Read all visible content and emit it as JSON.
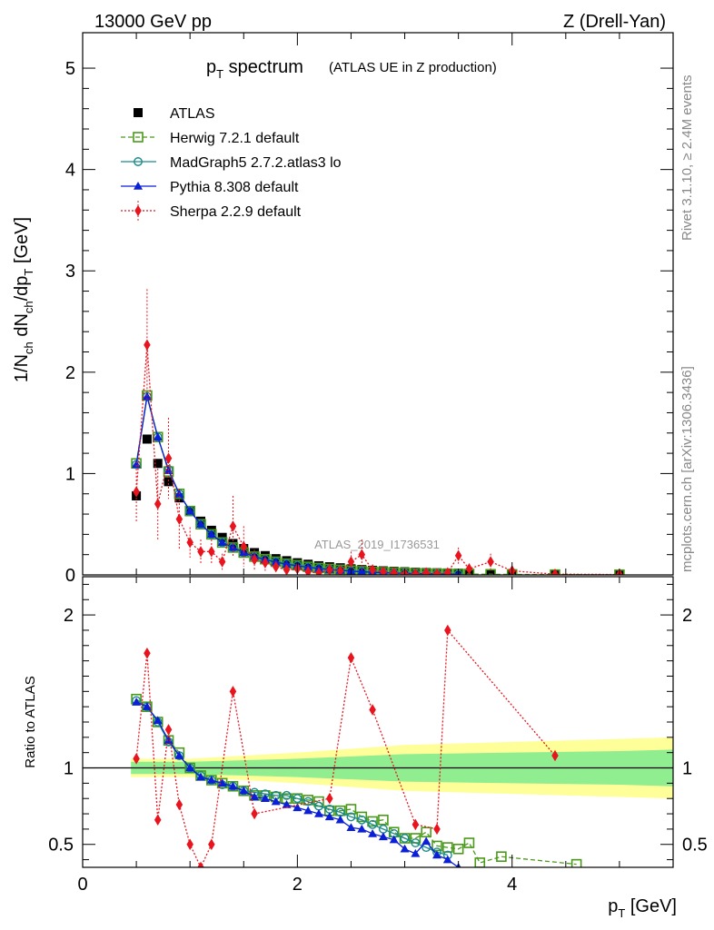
{
  "header": {
    "left": "13000 GeV pp",
    "right": "Z (Drell-Yan)"
  },
  "side_text": {
    "rivet": "Rivet 3.1.10, ≥ 2.4M events",
    "site": "mcplots.cern.ch [arXiv:1306.3436]"
  },
  "chart_data": [
    {
      "type": "line",
      "panel": "main",
      "title_main": "p",
      "title_sub": "T",
      "title_rest": " spectrum",
      "title_note": "(ATLAS UE in Z production)",
      "watermark": "ATLAS_2019_I1736531",
      "ylabel": "1/N_ch dN_ch/dp_T [GeV]",
      "xlim": [
        0,
        5.5
      ],
      "ylim": [
        0,
        5.35
      ],
      "yticks": [
        0,
        1,
        2,
        3,
        4,
        5
      ],
      "ytick_labels": [
        "0",
        "1",
        "2",
        "3",
        "4",
        "5"
      ],
      "legend_position": "top-left",
      "series": [
        {
          "name": "ATLAS",
          "color": "#000000",
          "marker": "square-filled",
          "line": "none",
          "x": [
            0.5,
            0.6,
            0.7,
            0.8,
            0.9,
            1.0,
            1.1,
            1.2,
            1.3,
            1.4,
            1.5,
            1.6,
            1.7,
            1.8,
            1.9,
            2.0,
            2.1,
            2.2,
            2.3,
            2.4,
            2.5,
            2.6,
            2.7,
            2.8,
            2.9,
            3.0,
            3.1,
            3.2,
            3.3,
            3.4,
            3.5,
            3.6,
            3.8,
            4.0,
            4.4,
            5.0
          ],
          "y": [
            0.78,
            1.34,
            1.1,
            0.92,
            0.76,
            0.63,
            0.53,
            0.44,
            0.37,
            0.31,
            0.26,
            0.22,
            0.19,
            0.16,
            0.14,
            0.12,
            0.105,
            0.09,
            0.08,
            0.07,
            0.06,
            0.052,
            0.045,
            0.04,
            0.035,
            0.031,
            0.027,
            0.024,
            0.021,
            0.019,
            0.017,
            0.015,
            0.012,
            0.01,
            0.007,
            0.004
          ]
        },
        {
          "name": "Herwig 7.2.1 default",
          "color": "#4a9a1a",
          "marker": "square-open",
          "line": "dashed",
          "x": [
            0.5,
            0.6,
            0.7,
            0.8,
            0.9,
            1.0,
            1.1,
            1.2,
            1.3,
            1.4,
            1.5,
            1.6,
            1.7,
            1.8,
            1.9,
            2.0,
            2.1,
            2.2,
            2.3,
            2.4,
            2.5,
            2.6,
            2.7,
            2.8,
            2.9,
            3.0,
            3.1,
            3.2,
            3.3,
            3.4,
            3.5,
            3.6,
            3.8,
            4.0,
            4.4,
            5.0
          ],
          "y": [
            1.1,
            1.77,
            1.36,
            1.02,
            0.8,
            0.63,
            0.5,
            0.4,
            0.32,
            0.27,
            0.22,
            0.18,
            0.155,
            0.13,
            0.11,
            0.095,
            0.08,
            0.068,
            0.058,
            0.05,
            0.042,
            0.036,
            0.03,
            0.026,
            0.022,
            0.019,
            0.016,
            0.014,
            0.012,
            0.01,
            0.009,
            0.008,
            0.006,
            0.005,
            0.003,
            0.002
          ]
        },
        {
          "name": "MadGraph5 2.7.2.atlas3 lo",
          "color": "#1a8a8a",
          "marker": "circle-open",
          "line": "solid",
          "x": [
            0.5,
            0.6,
            0.7,
            0.8,
            0.9,
            1.0,
            1.1,
            1.2,
            1.3,
            1.4,
            1.5,
            1.6,
            1.7,
            1.8,
            1.9,
            2.0,
            2.1,
            2.2,
            2.3,
            2.4,
            2.5,
            2.6,
            2.7,
            2.8,
            2.9,
            3.0,
            3.1,
            3.2,
            3.3,
            3.4,
            3.5
          ],
          "y": [
            1.09,
            1.76,
            1.36,
            1.04,
            0.8,
            0.63,
            0.5,
            0.4,
            0.32,
            0.27,
            0.22,
            0.18,
            0.155,
            0.13,
            0.11,
            0.094,
            0.078,
            0.066,
            0.056,
            0.047,
            0.04,
            0.034,
            0.028,
            0.024,
            0.02,
            0.017,
            0.014,
            0.012,
            0.01,
            0.008,
            0.007
          ]
        },
        {
          "name": "Pythia 8.308 default",
          "color": "#0a1fd6",
          "marker": "triangle-filled",
          "line": "solid",
          "x": [
            0.5,
            0.6,
            0.7,
            0.8,
            0.9,
            1.0,
            1.1,
            1.2,
            1.3,
            1.4,
            1.5,
            1.6,
            1.7,
            1.8,
            1.9,
            2.0,
            2.1,
            2.2,
            2.3,
            2.4,
            2.5,
            2.6,
            2.7,
            2.8,
            2.9,
            3.0,
            3.1,
            3.2,
            3.3,
            3.4,
            3.5
          ],
          "y": [
            1.09,
            1.76,
            1.36,
            1.03,
            0.8,
            0.63,
            0.5,
            0.4,
            0.32,
            0.27,
            0.22,
            0.18,
            0.15,
            0.125,
            0.105,
            0.09,
            0.075,
            0.063,
            0.053,
            0.045,
            0.037,
            0.031,
            0.026,
            0.022,
            0.018,
            0.015,
            0.013,
            0.011,
            0.009,
            0.008,
            0.007
          ]
        },
        {
          "name": "Sherpa 2.2.9 default",
          "color": "#e8141e",
          "marker": "diamond-filled",
          "line": "dotted",
          "x": [
            0.5,
            0.6,
            0.7,
            0.8,
            0.9,
            1.0,
            1.1,
            1.2,
            1.3,
            1.4,
            1.5,
            1.6,
            1.7,
            1.8,
            1.9,
            2.0,
            2.1,
            2.2,
            2.3,
            2.4,
            2.5,
            2.6,
            2.7,
            2.8,
            2.9,
            3.0,
            3.1,
            3.2,
            3.3,
            3.4,
            3.5,
            3.6,
            3.8,
            4.0,
            4.4,
            5.0
          ],
          "y": [
            0.82,
            2.27,
            0.7,
            1.15,
            0.55,
            0.32,
            0.23,
            0.23,
            0.13,
            0.48,
            0.28,
            0.15,
            0.12,
            0.08,
            0.05,
            0.06,
            0.03,
            0.02,
            0.05,
            0.04,
            0.13,
            0.2,
            0.05,
            0.03,
            0.02,
            0.01,
            0.01,
            0.02,
            0.01,
            0.02,
            0.19,
            0.06,
            0.13,
            0.04,
            0.007,
            0.004
          ],
          "y_err": [
            0.3,
            0.55,
            0.35,
            0.4,
            0.3,
            0.15,
            0.12,
            0.12,
            0.08,
            0.3,
            0.2,
            0.1,
            0.08,
            0.05,
            0.04,
            0.05,
            0.03,
            0.02,
            0.06,
            0.04,
            0.1,
            0.15,
            0.05,
            0.03,
            0.02,
            0.02,
            0.02,
            0.02,
            0.02,
            0.02,
            0.08,
            0.05,
            0.08,
            0.05,
            0.02,
            0.02
          ]
        }
      ]
    },
    {
      "type": "line",
      "panel": "ratio",
      "ylabel": "Ratio to ATLAS",
      "xlabel_main": "p",
      "xlabel_sub": "T",
      "xlabel_rest": " [GeV]",
      "xlim": [
        0,
        5.5
      ],
      "ylim": [
        0.35,
        2.25
      ],
      "xticks": [
        0,
        2,
        4
      ],
      "xtick_labels": [
        "0",
        "2",
        "4"
      ],
      "yticks": [
        0.5,
        1,
        2
      ],
      "ytick_labels": [
        "0.5",
        "1",
        "2"
      ],
      "band": {
        "x": [
          0.45,
          1.0,
          2.0,
          3.0,
          4.0,
          5.0,
          5.5
        ],
        "inner": [
          0.04,
          0.04,
          0.06,
          0.09,
          0.1,
          0.11,
          0.12
        ],
        "outer": [
          0.06,
          0.06,
          0.1,
          0.15,
          0.17,
          0.19,
          0.2
        ],
        "inner_color": "#90ee90",
        "outer_color": "#ffff99"
      },
      "series": [
        {
          "name": "Herwig 7.2.1 default",
          "color": "#4a9a1a",
          "x": [
            0.5,
            0.6,
            0.7,
            0.8,
            0.9,
            1.0,
            1.1,
            1.2,
            1.3,
            1.4,
            1.5,
            1.6,
            1.7,
            1.8,
            1.9,
            2.0,
            2.1,
            2.2,
            2.3,
            2.4,
            2.5,
            2.6,
            2.7,
            2.8,
            2.9,
            3.0,
            3.1,
            3.2,
            3.3,
            3.4,
            3.5,
            3.6,
            3.7,
            3.9,
            4.6
          ],
          "y": [
            1.45,
            1.4,
            1.3,
            1.18,
            1.1,
            1.0,
            0.95,
            0.92,
            0.9,
            0.88,
            0.85,
            0.82,
            0.82,
            0.81,
            0.8,
            0.8,
            0.79,
            0.78,
            0.72,
            0.72,
            0.73,
            0.68,
            0.65,
            0.66,
            0.58,
            0.54,
            0.54,
            0.58,
            0.49,
            0.48,
            0.47,
            0.51,
            0.38,
            0.42,
            0.37
          ]
        },
        {
          "name": "MadGraph5 2.7.2.atlas3 lo",
          "color": "#1a8a8a",
          "x": [
            0.5,
            0.6,
            0.7,
            0.8,
            0.9,
            1.0,
            1.1,
            1.2,
            1.3,
            1.4,
            1.5,
            1.6,
            1.7,
            1.8,
            1.9,
            2.0,
            2.1,
            2.2,
            2.3,
            2.4,
            2.5,
            2.6,
            2.7,
            2.8,
            2.9,
            3.0,
            3.1,
            3.2,
            3.3,
            3.4
          ],
          "y": [
            1.44,
            1.4,
            1.3,
            1.17,
            1.08,
            1.0,
            0.95,
            0.92,
            0.89,
            0.88,
            0.85,
            0.84,
            0.83,
            0.82,
            0.82,
            0.8,
            0.78,
            0.75,
            0.73,
            0.71,
            0.68,
            0.66,
            0.63,
            0.6,
            0.57,
            0.54,
            0.51,
            0.48,
            0.45,
            0.43
          ]
        },
        {
          "name": "Pythia 8.308 default",
          "color": "#0a1fd6",
          "x": [
            0.5,
            0.6,
            0.7,
            0.8,
            0.9,
            1.0,
            1.1,
            1.2,
            1.3,
            1.4,
            1.5,
            1.6,
            1.7,
            1.8,
            1.9,
            2.0,
            2.1,
            2.2,
            2.3,
            2.4,
            2.5,
            2.6,
            2.7,
            2.8,
            2.9,
            3.0,
            3.1,
            3.2,
            3.3,
            3.4,
            3.5
          ],
          "y": [
            1.43,
            1.4,
            1.31,
            1.18,
            1.08,
            1.0,
            0.94,
            0.92,
            0.9,
            0.88,
            0.85,
            0.81,
            0.8,
            0.78,
            0.76,
            0.74,
            0.72,
            0.7,
            0.68,
            0.66,
            0.61,
            0.6,
            0.57,
            0.55,
            0.53,
            0.47,
            0.44,
            0.52,
            0.43,
            0.4,
            0.35
          ]
        },
        {
          "name": "Sherpa 2.2.9 default",
          "color": "#e8141e",
          "x": [
            0.5,
            0.6,
            0.7,
            0.8,
            0.9,
            1.0,
            1.1,
            1.2,
            1.4,
            1.6,
            2.3,
            2.5,
            2.7,
            3.1,
            3.3,
            3.4,
            4.4
          ],
          "y": [
            1.06,
            1.75,
            0.66,
            1.25,
            0.76,
            0.5,
            0.35,
            0.5,
            1.5,
            0.7,
            0.8,
            1.72,
            1.38,
            0.63,
            0.6,
            1.9,
            1.08
          ]
        }
      ]
    }
  ]
}
